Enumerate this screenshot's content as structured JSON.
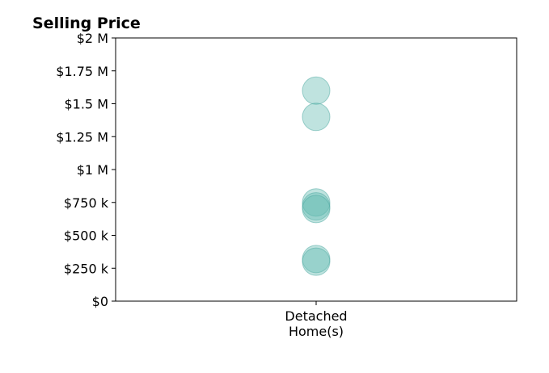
{
  "chart_data": {
    "type": "scatter",
    "title": "Selling Price",
    "xlabel": "",
    "ylabel": "",
    "categories": [
      "Detached\nHome(s)"
    ],
    "series": [
      {
        "category_index": 0,
        "values": [
          1600000,
          1400000,
          750000,
          720000,
          700000,
          320000,
          300000
        ]
      }
    ],
    "ylim": [
      0,
      2000000
    ],
    "yticks": [
      0,
      250000,
      500000,
      750000,
      1000000,
      1250000,
      1500000,
      1750000,
      2000000
    ],
    "ytick_labels": [
      "$0",
      "$250 k",
      "$500 k",
      "$750 k",
      "$1 M",
      "$1.25 M",
      "$1.5 M",
      "$1.75 M",
      "$2 M"
    ],
    "grid": false,
    "legend": "none",
    "marker_color": "#5fb8b0",
    "marker_edge_color": "#4aa89f"
  }
}
